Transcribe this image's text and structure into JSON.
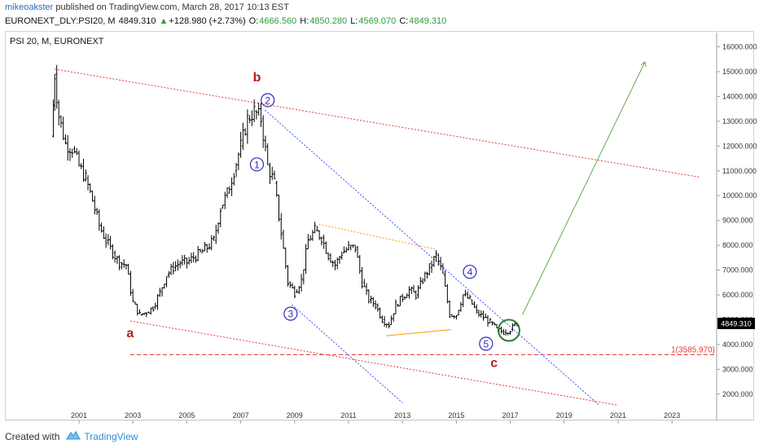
{
  "header": {
    "author": "mikeoakster",
    "published_text": "published on TradingView.com, March 28, 2017 10:13 EST",
    "symbol": "EURONEXT_DLY:PSI20, M",
    "last": "4849.310",
    "change_arrow": "▲",
    "change": "+128.980 (+2.73%)",
    "open_label": "O:",
    "open": "4666.560",
    "high_label": "H:",
    "high": "4850.280",
    "low_label": "L:",
    "low": "4569.070",
    "close_label": "C:",
    "close": "4849.310"
  },
  "chart_title": "PSI 20, M, EURONEXT",
  "footer": {
    "created_with": "Created with",
    "brand": "TradingView"
  },
  "colors": {
    "bars": "#000000",
    "channel": "#e53935",
    "wave_line": "#3f51ff",
    "triangle": "#ff9800",
    "target": "#6aa84f",
    "label_red": "#b71c1c",
    "circle": "#2c2cb8"
  },
  "chart_data": {
    "type": "ohlc",
    "ylim": [
      1500,
      16500
    ],
    "xlim": [
      2000.0,
      2023.8
    ],
    "y_ticks": [
      "16000.000",
      "15000.000",
      "14000.000",
      "13000.000",
      "12000.000",
      "11000.000",
      "10000.000",
      "9000.000",
      "8000.000",
      "7000.000",
      "6000.000",
      "5000.000",
      "4000.000",
      "3000.000",
      "2000.000"
    ],
    "x_ticks": [
      "2001",
      "2003",
      "2005",
      "2007",
      "2009",
      "2011",
      "2013",
      "2015",
      "2017",
      "2019",
      "2021",
      "2023"
    ],
    "last_price_label": "4849.310",
    "fib_label": "1(3585.970)",
    "series_close": [
      [
        2000.0,
        12400
      ],
      [
        2000.1,
        14900
      ],
      [
        2000.25,
        13200
      ],
      [
        2000.5,
        12100
      ],
      [
        2000.75,
        11900
      ],
      [
        2001.0,
        11200
      ],
      [
        2001.25,
        10700
      ],
      [
        2001.5,
        9800
      ],
      [
        2001.75,
        8800
      ],
      [
        2002.0,
        8200
      ],
      [
        2002.25,
        7700
      ],
      [
        2002.5,
        7300
      ],
      [
        2002.75,
        7200
      ],
      [
        2003.0,
        5700
      ],
      [
        2003.25,
        5200
      ],
      [
        2003.5,
        5300
      ],
      [
        2003.75,
        5500
      ],
      [
        2004.0,
        6100
      ],
      [
        2004.25,
        6800
      ],
      [
        2004.5,
        7100
      ],
      [
        2004.75,
        7300
      ],
      [
        2005.0,
        7300
      ],
      [
        2005.25,
        7500
      ],
      [
        2005.5,
        7700
      ],
      [
        2005.75,
        7900
      ],
      [
        2006.0,
        8200
      ],
      [
        2006.25,
        9500
      ],
      [
        2006.5,
        10100
      ],
      [
        2006.75,
        11000
      ],
      [
        2007.0,
        12000
      ],
      [
        2007.25,
        13100
      ],
      [
        2007.5,
        13400
      ],
      [
        2007.75,
        13100
      ],
      [
        2008.0,
        11200
      ],
      [
        2008.25,
        10500
      ],
      [
        2008.5,
        8500
      ],
      [
        2008.75,
        6500
      ],
      [
        2009.0,
        6100
      ],
      [
        2009.25,
        6600
      ],
      [
        2009.5,
        8200
      ],
      [
        2009.75,
        8600
      ],
      [
        2010.0,
        8300
      ],
      [
        2010.25,
        7600
      ],
      [
        2010.5,
        7200
      ],
      [
        2010.75,
        7700
      ],
      [
        2011.0,
        7900
      ],
      [
        2011.25,
        7900
      ],
      [
        2011.5,
        6500
      ],
      [
        2011.75,
        5800
      ],
      [
        2012.0,
        5600
      ],
      [
        2012.25,
        5000
      ],
      [
        2012.5,
        4800
      ],
      [
        2012.75,
        5600
      ],
      [
        2013.0,
        5900
      ],
      [
        2013.25,
        6200
      ],
      [
        2013.5,
        6000
      ],
      [
        2013.75,
        6600
      ],
      [
        2014.0,
        7100
      ],
      [
        2014.25,
        7600
      ],
      [
        2014.5,
        6800
      ],
      [
        2014.75,
        5200
      ],
      [
        2015.0,
        5200
      ],
      [
        2015.25,
        6000
      ],
      [
        2015.5,
        5800
      ],
      [
        2015.75,
        5300
      ],
      [
        2016.0,
        5100
      ],
      [
        2016.25,
        4900
      ],
      [
        2016.5,
        4600
      ],
      [
        2016.75,
        4500
      ],
      [
        2017.0,
        4600
      ],
      [
        2017.25,
        4849
      ]
    ],
    "annotations": [
      {
        "text": "b",
        "x": 2007.6,
        "y": 14600,
        "kind": "letter"
      },
      {
        "text": "a",
        "x": 2002.9,
        "y": 4300,
        "kind": "letter"
      },
      {
        "text": "c",
        "x": 2016.4,
        "y": 3100,
        "kind": "letter"
      },
      {
        "text": "1",
        "x": 2007.6,
        "y": 11260,
        "kind": "circle"
      },
      {
        "text": "2",
        "x": 2008.0,
        "y": 13850,
        "kind": "circle"
      },
      {
        "text": "3",
        "x": 2008.85,
        "y": 5240,
        "kind": "circle"
      },
      {
        "text": "4",
        "x": 2015.5,
        "y": 6930,
        "kind": "circle"
      },
      {
        "text": "5",
        "x": 2016.1,
        "y": 4030,
        "kind": "circle"
      }
    ]
  }
}
